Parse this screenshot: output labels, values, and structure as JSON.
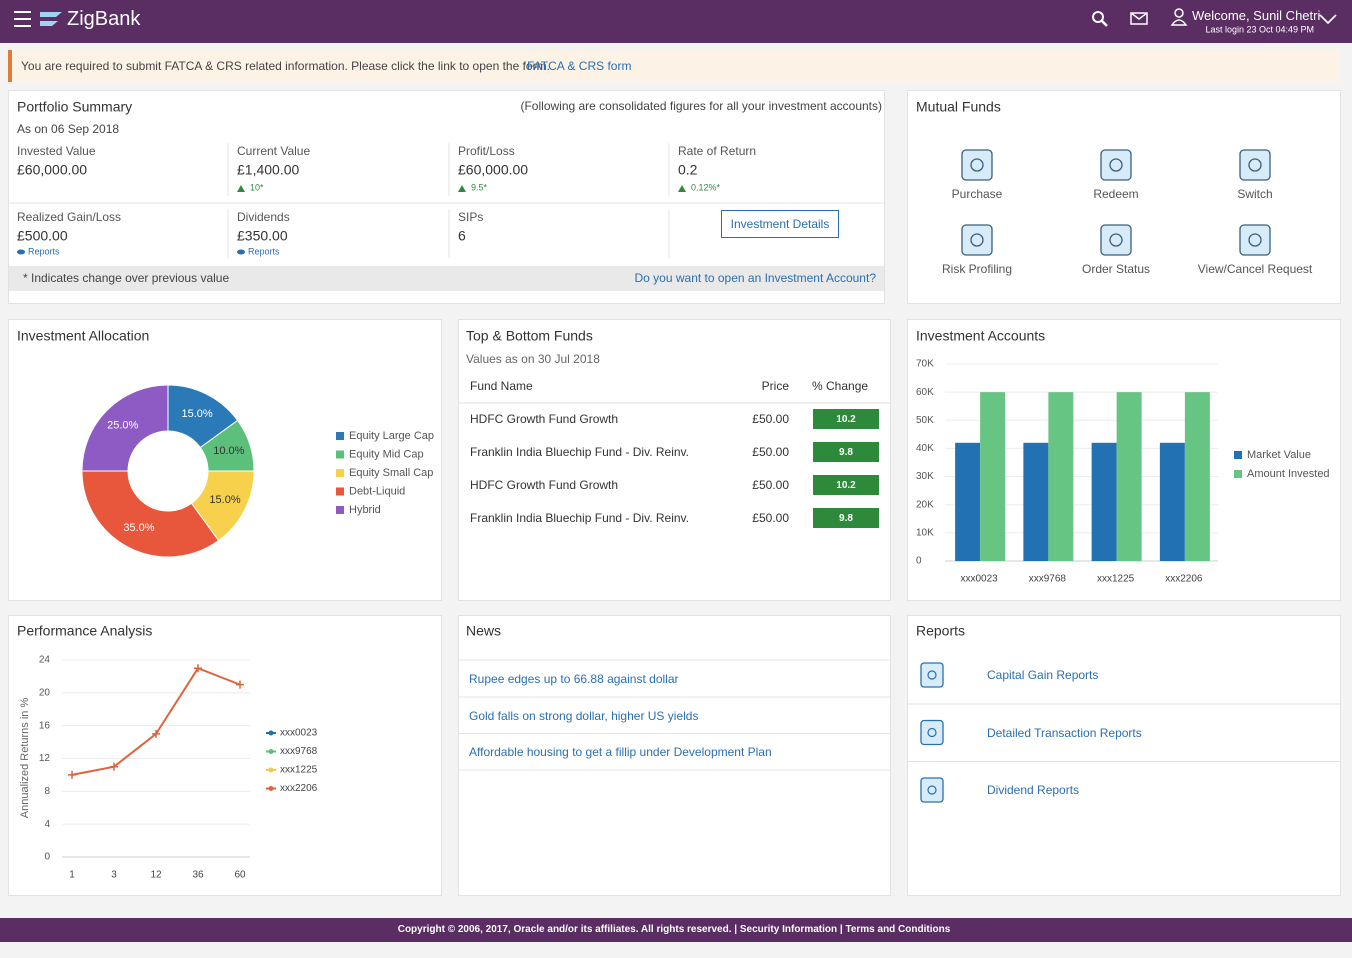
{
  "header": {
    "brand": "ZigBank",
    "welcome": "Welcome, Sunil Chetri",
    "last_login": "Last login 23 Oct 04:49 PM"
  },
  "alert": {
    "text": "You are required to submit FATCA & CRS related information. Please click the link to open the form.",
    "link": "FATCA & CRS form"
  },
  "portfolio": {
    "title": "Portfolio Summary",
    "note": "(Following are consolidated figures for all your investment accounts)",
    "as_on": "As on 06 Sep 2018",
    "metrics": [
      {
        "label": "Invested Value",
        "value": "£60,000.00"
      },
      {
        "label": "Current Value",
        "value": "£1,400.00",
        "change": "10*"
      },
      {
        "label": "Profit/Loss",
        "value": "£60,000.00",
        "change": "9.5*"
      },
      {
        "label": "Rate of Return",
        "value": "0.2",
        "change": "0.12%*"
      }
    ],
    "metrics2": [
      {
        "label": "Realized Gain/Loss",
        "value": "£500.00",
        "link": "Reports"
      },
      {
        "label": "Dividends",
        "value": "£350.00",
        "link": "Reports"
      },
      {
        "label": "SIPs",
        "value": "6"
      }
    ],
    "button": "Investment Details",
    "footnote": "* Indicates change over previous value",
    "open_link": "Do you want to open an Investment Account?"
  },
  "mutual_funds": {
    "title": "Mutual Funds",
    "actions": [
      "Purchase",
      "Redeem",
      "Switch",
      "Risk Profiling",
      "Order Status",
      "View/Cancel Request"
    ]
  },
  "allocation": {
    "type": "pie",
    "title": "Investment Allocation",
    "categories": [
      "Equity Large Cap",
      "Equity Mid Cap",
      "Equity Small Cap",
      "Debt-Liquid",
      "Hybrid"
    ],
    "values": [
      15,
      10,
      15,
      35,
      25
    ],
    "value_labels": [
      "15.0%",
      "10.0%",
      "15.0%",
      "35.0%",
      "25.0%"
    ],
    "colors": [
      "#2a7ab8",
      "#5cbf7a",
      "#f7d14c",
      "#e8573c",
      "#8e5bc4"
    ]
  },
  "top_funds": {
    "title": "Top & Bottom Funds",
    "as_of": "Values as on 30 Jul 2018",
    "columns": [
      "Fund Name",
      "Price",
      "% Change"
    ],
    "rows": [
      [
        "HDFC Growth Fund Growth",
        "£50.00",
        10.2
      ],
      [
        "Franklin India Bluechip Fund - Div. Reinv.",
        "£50.00",
        9.8
      ],
      [
        "HDFC Growth Fund Growth",
        "£50.00",
        10.2
      ],
      [
        "Franklin India Bluechip Fund - Div. Reinv.",
        "£50.00",
        9.8
      ]
    ]
  },
  "accounts": {
    "type": "bar",
    "title": "Investment Accounts",
    "categories": [
      "xxx0023",
      "xxx9768",
      "xxx1225",
      "xxx2206"
    ],
    "series": [
      {
        "name": "Market Value",
        "color": "#2271b3",
        "values": [
          42000,
          42000,
          42000,
          42000
        ]
      },
      {
        "name": "Amount Invested",
        "color": "#67c583",
        "values": [
          60000,
          60000,
          60000,
          60000
        ]
      }
    ],
    "ylim": [
      0,
      70000
    ],
    "yticks": [
      0,
      {
        "value": 10000,
        "label": "10K"
      },
      {
        "value": 20000,
        "label": "20K"
      },
      {
        "value": 30000,
        "label": "30K"
      },
      {
        "value": 40000,
        "label": "40K"
      },
      {
        "value": 50000,
        "label": "50K"
      },
      {
        "value": 60000,
        "label": "60K"
      },
      {
        "value": 70000,
        "label": "70K"
      }
    ],
    "grid": true
  },
  "performance": {
    "type": "line",
    "title": "Performance Analysis",
    "y_label": "Annualized Returns in %",
    "categories": [
      "1",
      "3",
      "12",
      "36",
      "60"
    ],
    "series": [
      {
        "name": "xxx0023",
        "color": "#1f6fb2",
        "values": [
          null,
          null,
          null,
          null,
          null
        ]
      },
      {
        "name": "xxx9768",
        "color": "#5cbf7a",
        "values": [
          null,
          null,
          null,
          null,
          null
        ]
      },
      {
        "name": "xxx1225",
        "color": "#f2c94c",
        "values": [
          null,
          null,
          null,
          null,
          null
        ]
      },
      {
        "name": "xxx2206",
        "color": "#e0633a",
        "values": [
          10,
          11,
          15,
          23,
          21
        ]
      }
    ],
    "ylim": [
      0,
      24
    ],
    "yticks": [
      0,
      4,
      8,
      12,
      16,
      20,
      24
    ],
    "grid": true
  },
  "news": {
    "title": "News",
    "items": [
      "Rupee edges up to 66.88 against dollar",
      "Gold falls on strong dollar, higher US yields",
      "Affordable housing to get a fillip under Development Plan"
    ]
  },
  "reports": {
    "title": "Reports",
    "items": [
      "Capital Gain Reports",
      "Detailed Transaction Reports",
      "Dividend Reports"
    ]
  },
  "footer": {
    "text": "Copyright © 2006, 2017, Oracle and/or its affiliates. All rights reserved. | Security Information | Terms and Conditions"
  }
}
